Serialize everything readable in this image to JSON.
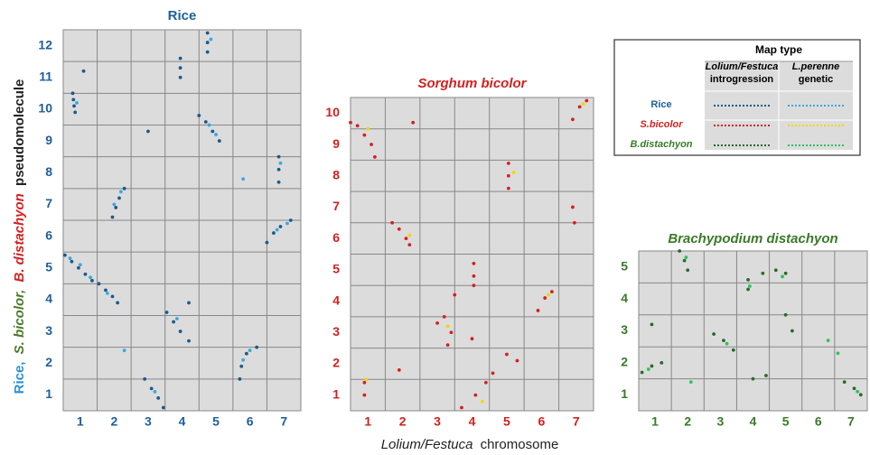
{
  "chart_data": [
    {
      "type": "scatter",
      "title": "Rice",
      "label_color": "#1f5f99",
      "title_style": "normal",
      "xlim": [
        0.5,
        7.5
      ],
      "xticks": [
        1,
        2,
        3,
        4,
        5,
        6,
        7
      ],
      "ylim": [
        0.5,
        12.5
      ],
      "yticks": [
        1,
        2,
        3,
        4,
        5,
        6,
        7,
        8,
        9,
        10,
        11,
        12
      ],
      "grid": true,
      "series": [
        {
          "color": "#1a5a8a",
          "x": [
            0.78,
            0.8,
            0.82,
            0.85,
            0.55,
            0.75,
            0.95,
            1.15,
            1.35,
            1.55,
            1.75,
            1.95,
            2.1,
            1.95,
            2.05,
            2.15,
            2.3,
            2.9,
            3.1,
            3.3,
            3.45,
            3.55,
            3.75,
            3.95,
            4.2,
            3.95,
            3.95,
            3.95,
            4.75,
            4.75,
            4.75,
            4.5,
            4.7,
            4.9,
            5.1,
            5.7,
            5.75,
            5.9,
            6.2,
            6.85,
            6.85,
            6.85,
            6.5,
            6.7,
            6.9,
            7.2,
            1.1,
            4.2,
            3.0
          ],
          "y": [
            10.5,
            10.3,
            10.1,
            9.9,
            5.4,
            5.2,
            5.0,
            4.8,
            4.6,
            4.5,
            4.3,
            4.1,
            3.9,
            6.6,
            6.9,
            7.2,
            7.5,
            1.5,
            1.2,
            0.9,
            0.6,
            3.6,
            3.3,
            3.0,
            2.7,
            11.6,
            11.3,
            11.0,
            12.4,
            12.1,
            11.8,
            9.8,
            9.6,
            9.3,
            9.0,
            1.5,
            1.9,
            2.3,
            2.5,
            8.5,
            8.1,
            7.7,
            5.8,
            6.1,
            6.3,
            6.5,
            11.2,
            3.9,
            9.3
          ]
        },
        {
          "color": "#3aa8e0",
          "x": [
            0.9,
            0.7,
            1.0,
            1.3,
            1.8,
            2.2,
            2.0,
            3.2,
            3.85,
            4.85,
            4.8,
            5.0,
            5.8,
            6.0,
            6.9,
            6.8,
            7.1,
            2.3,
            5.8
          ],
          "y": [
            10.2,
            5.3,
            5.1,
            4.7,
            4.2,
            7.4,
            7.0,
            1.1,
            3.4,
            12.2,
            9.5,
            9.2,
            2.1,
            2.4,
            8.3,
            6.2,
            6.4,
            2.4,
            7.8
          ]
        }
      ]
    },
    {
      "type": "scatter",
      "title": "Sorghum bicolor",
      "label_color": "#d42020",
      "title_style": "italic",
      "xlim": [
        0.5,
        7.5
      ],
      "xticks": [
        1,
        2,
        3,
        4,
        5,
        6,
        7
      ],
      "ylim": [
        0.5,
        10.5
      ],
      "yticks": [
        1,
        2,
        3,
        4,
        5,
        6,
        7,
        8,
        9,
        10
      ],
      "grid": true,
      "series": [
        {
          "color": "#d42020",
          "x": [
            0.5,
            0.7,
            0.9,
            1.1,
            1.2,
            0.9,
            0.9,
            1.7,
            1.9,
            2.1,
            2.2,
            1.9,
            3.0,
            3.2,
            3.4,
            3.3,
            4.05,
            4.05,
            4.05,
            3.7,
            4.1,
            4.4,
            4.6,
            5.05,
            5.05,
            5.05,
            5.0,
            5.3,
            5.9,
            6.1,
            6.3,
            6.9,
            7.1,
            7.3,
            6.9,
            6.95,
            2.3,
            4.0,
            3.5
          ],
          "y": [
            9.7,
            9.6,
            9.3,
            9.0,
            8.6,
            1.4,
            1.0,
            6.5,
            6.3,
            6.0,
            5.8,
            1.8,
            3.3,
            3.5,
            3.0,
            2.6,
            5.2,
            4.8,
            4.5,
            0.6,
            1.0,
            1.4,
            1.7,
            8.4,
            8.0,
            7.6,
            2.3,
            2.1,
            3.7,
            4.1,
            4.3,
            9.8,
            10.2,
            10.4,
            7.0,
            6.5,
            9.7,
            2.8,
            4.2
          ]
        },
        {
          "color": "#f0d800",
          "x": [
            1.0,
            2.2,
            3.3,
            5.2,
            6.2,
            7.2,
            0.95,
            4.3
          ],
          "y": [
            9.5,
            6.1,
            3.2,
            8.1,
            4.2,
            10.3,
            1.5,
            0.8
          ]
        }
      ]
    },
    {
      "type": "scatter",
      "title": "Brachypodium distachyon",
      "label_color": "#3a7a2a",
      "title_style": "italic",
      "xlim": [
        0.5,
        7.5
      ],
      "xticks": [
        1,
        2,
        3,
        4,
        5,
        6,
        7
      ],
      "ylim": [
        0.5,
        5.5
      ],
      "yticks": [
        1,
        2,
        3,
        4,
        5
      ],
      "grid": true,
      "series": [
        {
          "color": "#2a6a2a",
          "x": [
            1.75,
            1.9,
            2.0,
            0.6,
            0.9,
            1.2,
            0.9,
            2.8,
            3.1,
            3.4,
            3.85,
            3.85,
            4.3,
            4.7,
            5.0,
            4.0,
            4.4,
            6.8,
            7.1,
            7.3,
            5.0,
            5.2
          ],
          "y": [
            5.5,
            5.2,
            4.9,
            1.7,
            1.9,
            2.0,
            3.2,
            2.9,
            2.7,
            2.4,
            4.6,
            4.3,
            4.8,
            4.9,
            4.8,
            1.5,
            1.6,
            1.4,
            1.2,
            1.0,
            3.5,
            3.0
          ]
        },
        {
          "color": "#30c060",
          "x": [
            1.95,
            0.8,
            3.2,
            3.9,
            4.9,
            6.3,
            6.6,
            7.2,
            2.1
          ],
          "y": [
            5.3,
            1.8,
            2.6,
            4.4,
            4.7,
            2.7,
            2.3,
            1.1,
            1.4
          ]
        }
      ]
    }
  ],
  "y_label": [
    "Rice,",
    "S. bicolor,",
    "B. distachyon",
    "pseudomolecule"
  ],
  "x_label": [
    "Lolium/Festuca",
    "chromosome"
  ],
  "legend": {
    "title": "Map type",
    "columns": [
      [
        "Lolium/Festuca",
        "introgression"
      ],
      [
        "L.perenne",
        "genetic"
      ]
    ],
    "rows": [
      "Rice",
      "S.bicolor",
      "B.distachyon"
    ]
  }
}
